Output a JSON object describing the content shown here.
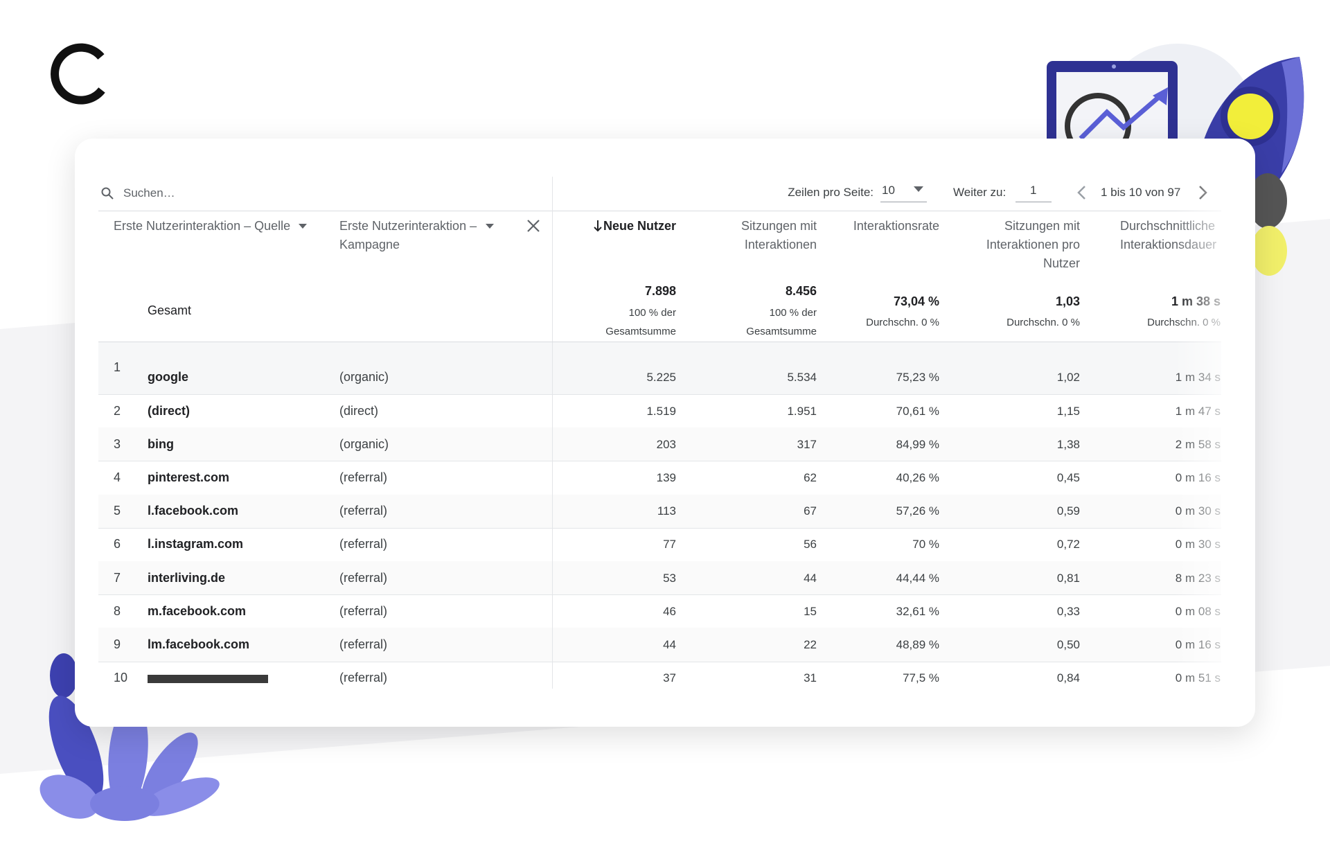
{
  "toolbar": {
    "search_placeholder": "Suchen…",
    "rows_per_page_label": "Zeilen pro Seite:",
    "rows_per_page": "10",
    "goto_label": "Weiter zu:",
    "goto_page": "1",
    "range": "1 bis 10 von 97"
  },
  "table": {
    "columns": [
      "Erste Nutzerinteraktion – Quelle",
      "Erste Nutzerinteraktion – Kampagne",
      "Neue Nutzer",
      "Sitzungen mit Interaktionen",
      "Interaktionsrate",
      "Sitzungen mit Interaktionen pro Nutzer",
      "Durchschnittliche Interaktionsdauer"
    ],
    "totals": {
      "label": "Gesamt",
      "cells": [
        {
          "value": "7.898",
          "note": "100 % der Gesamtsumme"
        },
        {
          "value": "8.456",
          "note": "100 % der Gesamtsumme"
        },
        {
          "value": "73,04 %",
          "note": "Durchschn. 0 %"
        },
        {
          "value": "1,03",
          "note": "Durchschn. 0 %"
        },
        {
          "value": "1 m 38 s",
          "note": "Durchschn. 0 %"
        }
      ]
    },
    "rows": [
      [
        1,
        "google",
        "(organic)",
        "5.225",
        "5.534",
        "75,23 %",
        "1,02",
        "1 m 34 s"
      ],
      [
        2,
        "(direct)",
        "(direct)",
        "1.519",
        "1.951",
        "70,61 %",
        "1,15",
        "1 m 47 s"
      ],
      [
        3,
        "bing",
        "(organic)",
        "203",
        "317",
        "84,99 %",
        "1,38",
        "2 m 58 s"
      ],
      [
        4,
        "pinterest.com",
        "(referral)",
        "139",
        "62",
        "40,26 %",
        "0,45",
        "0 m 16 s"
      ],
      [
        5,
        "l.facebook.com",
        "(referral)",
        "113",
        "67",
        "57,26 %",
        "0,59",
        "0 m 30 s"
      ],
      [
        6,
        "l.instagram.com",
        "(referral)",
        "77",
        "56",
        "70 %",
        "0,72",
        "0 m 30 s"
      ],
      [
        7,
        "interliving.de",
        "(referral)",
        "53",
        "44",
        "44,44 %",
        "0,81",
        "8 m 23 s"
      ],
      [
        8,
        "m.facebook.com",
        "(referral)",
        "46",
        "15",
        "32,61 %",
        "0,33",
        "0 m 08 s"
      ],
      [
        9,
        "lm.facebook.com",
        "(referral)",
        "44",
        "22",
        "48,89 %",
        "0,50",
        "0 m 16 s"
      ],
      [
        10,
        null,
        "(referral)",
        "37",
        "31",
        "77,5 %",
        "0,84",
        "0 m 51 s"
      ]
    ]
  }
}
